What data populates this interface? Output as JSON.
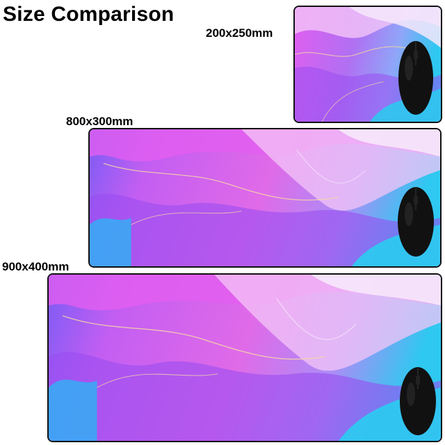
{
  "title": "Size Comparison",
  "sizes": [
    {
      "label": "200x250mm"
    },
    {
      "label": "800x300mm"
    },
    {
      "label": "900x400mm"
    }
  ],
  "colors": {
    "magenta": "#e25ef0",
    "purple": "#9a4df0",
    "violet": "#7a5cf5",
    "cyan": "#2ec8f0",
    "light": "#f6e8fb",
    "gold": "#f3d6a8",
    "border": "#111111"
  }
}
